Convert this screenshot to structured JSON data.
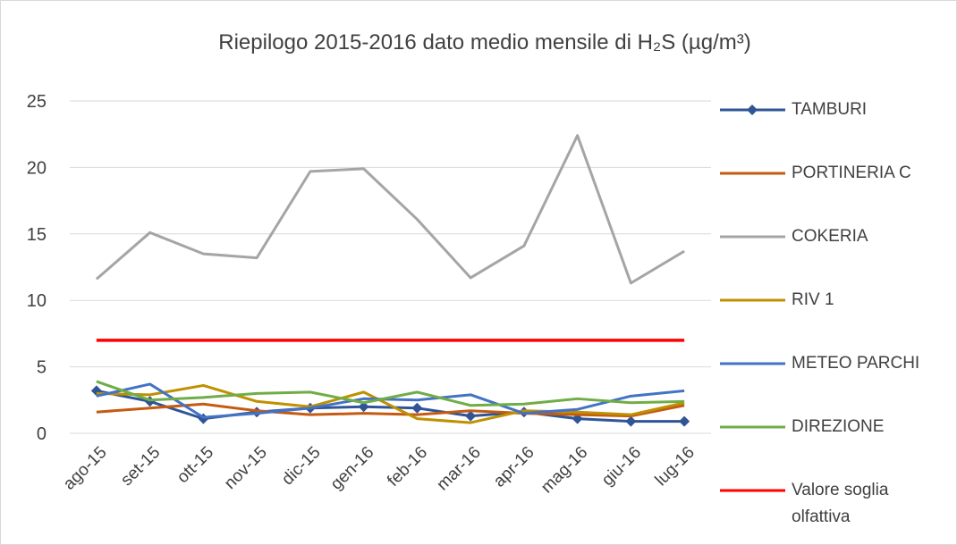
{
  "chart_data": {
    "type": "line",
    "title": "Riepilogo 2015-2016 dato medio mensile di H₂S (µg/m³)",
    "categories": [
      "ago-15",
      "set-15",
      "ott-15",
      "nov-15",
      "dic-15",
      "gen-16",
      "feb-16",
      "mar-16",
      "apr-16",
      "mag-16",
      "giu-16",
      "lug-16"
    ],
    "series": [
      {
        "name": "TAMBURI",
        "color": "#2f5597",
        "marker": "diamond",
        "values": [
          3.2,
          2.4,
          1.1,
          1.6,
          1.9,
          2.0,
          1.9,
          1.3,
          1.6,
          1.1,
          0.9,
          0.9
        ]
      },
      {
        "name": "PORTINERIA C",
        "color": "#c55a11",
        "values": [
          1.6,
          1.9,
          2.2,
          1.7,
          1.4,
          1.5,
          1.4,
          1.7,
          1.5,
          1.4,
          1.3,
          2.1
        ]
      },
      {
        "name": "COKERIA",
        "color": "#a5a5a5",
        "values": [
          11.6,
          15.1,
          13.5,
          13.2,
          19.7,
          19.9,
          16.1,
          11.7,
          14.1,
          22.4,
          11.3,
          13.7
        ]
      },
      {
        "name": "RIV 1",
        "color": "#bf9000",
        "values": [
          3.0,
          2.9,
          3.6,
          2.4,
          2.0,
          3.1,
          1.1,
          0.8,
          1.7,
          1.6,
          1.4,
          2.3
        ]
      },
      {
        "name": "METEO PARCHI",
        "color": "#4472c4",
        "values": [
          2.8,
          3.7,
          1.2,
          1.5,
          1.9,
          2.6,
          2.5,
          2.9,
          1.5,
          1.8,
          2.8,
          3.2
        ]
      },
      {
        "name": "DIREZIONE",
        "color": "#70ad47",
        "values": [
          3.9,
          2.5,
          2.7,
          3.0,
          3.1,
          2.3,
          3.1,
          2.1,
          2.2,
          2.6,
          2.3,
          2.4
        ]
      },
      {
        "name": "Valore soglia olfattiva",
        "color": "#ff0000",
        "values": [
          7,
          7,
          7,
          7,
          7,
          7,
          7,
          7,
          7,
          7,
          7,
          7
        ]
      }
    ],
    "ylim": [
      0,
      25
    ],
    "yticks": [
      0,
      5,
      10,
      15,
      20,
      25
    ],
    "grid": true,
    "legend": "right"
  }
}
